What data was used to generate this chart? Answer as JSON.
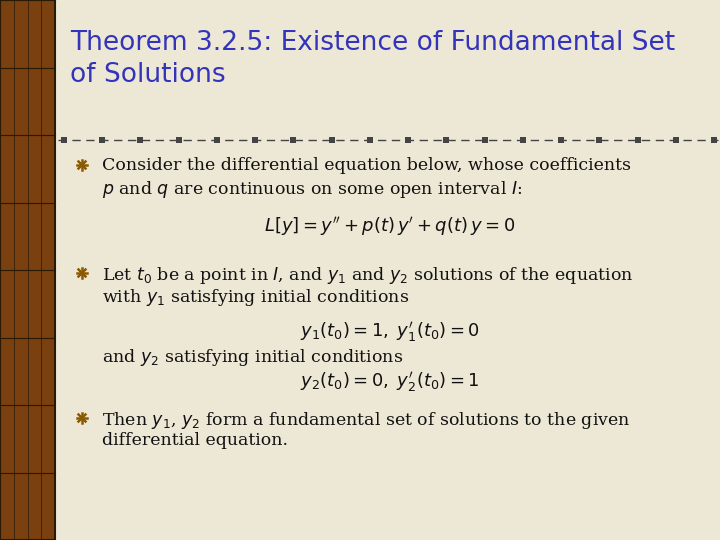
{
  "title_line1": "Theorem 3.2.5: Existence of Fundamental Set",
  "title_line2": "of Solutions",
  "title_color": "#3333BB",
  "title_fontsize": 19,
  "bg_color": "#EDE8D5",
  "left_stripe_color": "#7A4010",
  "text_color": "#111111",
  "bullet_color": "#8B5A00",
  "separator_color": "#444444",
  "body_fontsize": 12.5,
  "math_fontsize": 13,
  "bullet1_line1": "Consider the differential equation below, whose coefficients",
  "bullet1_line2": "$p$ and $q$ are continuous on some open interval $I$:",
  "eq1": "$L[y] = y'' + p(t)\\,y' + q(t)\\,y = 0$",
  "bullet2_line1": "Let $t_0$ be a point in $I$, and $y_1$ and $y_2$ solutions of the equation",
  "bullet2_line2": "with $y_1$ satisfying initial conditions",
  "eq2": "$y_1(t_0) = 1, \\; y_1'(t_0) = 0$",
  "text2b": "and $y_2$ satisfying initial conditions",
  "eq3": "$y_2(t_0) = 0, \\; y_2'(t_0) = 1$",
  "bullet3_line1": "Then $y_1$, $y_2$ form a fundamental set of solutions to the given",
  "bullet3_line2": "differential equation."
}
